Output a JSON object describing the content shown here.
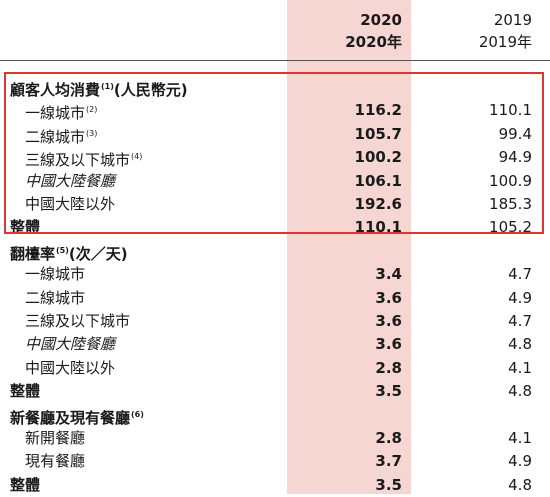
{
  "header": {
    "col_2020_year": "2020",
    "col_2020_label": "2020年",
    "col_2019_year": "2019",
    "col_2019_label": "2019年"
  },
  "rows": [
    {
      "label": "顧客人均消費",
      "note": "(1)",
      "suffix": "(人民幣元)",
      "type": "section"
    },
    {
      "label": "一線城市",
      "note": "(2)",
      "v2020": "116.2",
      "v2019": "110.1",
      "type": "item"
    },
    {
      "label": "二線城市",
      "note": "(3)",
      "v2020": "105.7",
      "v2019": "99.4",
      "type": "item"
    },
    {
      "label": "三線及以下城市",
      "note": "(4)",
      "v2020": "100.2",
      "v2019": "94.9",
      "type": "item"
    },
    {
      "label": "中國大陸餐廳",
      "v2020": "106.1",
      "v2019": "100.9",
      "type": "item",
      "italic": true
    },
    {
      "label": "中國大陸以外",
      "v2020": "192.6",
      "v2019": "185.3",
      "type": "item"
    },
    {
      "label": "整體",
      "v2020": "110.1",
      "v2019": "105.2",
      "type": "section"
    },
    {
      "label": "翻檯率",
      "note": "(5)",
      "suffix": "(次／天)",
      "type": "section"
    },
    {
      "label": "一線城市",
      "v2020": "3.4",
      "v2019": "4.7",
      "type": "item"
    },
    {
      "label": "二線城市",
      "v2020": "3.6",
      "v2019": "4.9",
      "type": "item"
    },
    {
      "label": "三線及以下城市",
      "v2020": "3.6",
      "v2019": "4.7",
      "type": "item"
    },
    {
      "label": "中國大陸餐廳",
      "v2020": "3.6",
      "v2019": "4.8",
      "type": "item",
      "italic": true
    },
    {
      "label": "中國大陸以外",
      "v2020": "2.8",
      "v2019": "4.1",
      "type": "item"
    },
    {
      "label": "整體",
      "v2020": "3.5",
      "v2019": "4.8",
      "type": "section"
    },
    {
      "label": "新餐廳及現有餐廳",
      "note": "(6)",
      "type": "section"
    },
    {
      "label": "新開餐廳",
      "v2020": "2.8",
      "v2019": "4.1",
      "type": "item"
    },
    {
      "label": "現有餐廳",
      "v2020": "3.7",
      "v2019": "4.9",
      "type": "item"
    },
    {
      "label": "整體",
      "v2020": "3.5",
      "v2019": "4.8",
      "type": "section"
    }
  ],
  "highlight": {
    "color": "#e0352f"
  }
}
